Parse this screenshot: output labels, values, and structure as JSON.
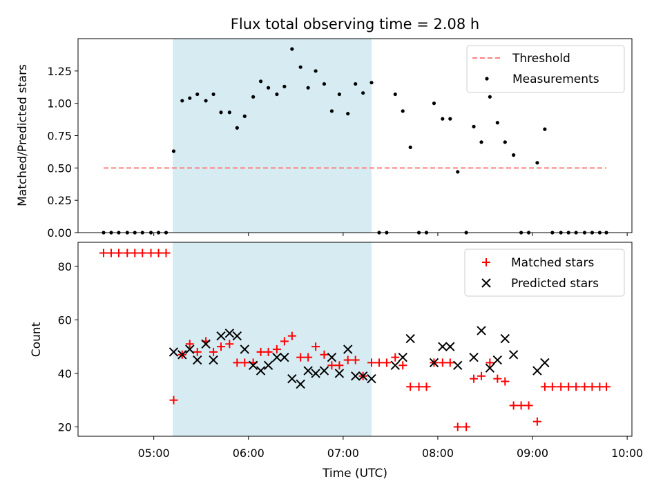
{
  "figure": {
    "title": "Flux total observing time = 2.08 h"
  },
  "chart_data": [
    {
      "type": "scatter",
      "panel": "top",
      "ylabel": "Matched/Predicted stars",
      "ylim": [
        0,
        1.5
      ],
      "yticks": [
        "0.00",
        "0.25",
        "0.50",
        "0.75",
        "1.00",
        "1.25"
      ],
      "xlim": [
        4.2,
        10.05
      ],
      "shaded_span": [
        5.2,
        7.3
      ],
      "grid": false,
      "legend_position": "top-right",
      "threshold": {
        "name": "Threshold",
        "value": 0.5,
        "x_range": [
          4.47,
          9.78
        ],
        "color": "#ff7f7f"
      },
      "series": [
        {
          "name": "Measurements",
          "color": "#000000",
          "x": [
            4.47,
            4.55,
            4.63,
            4.72,
            4.8,
            4.88,
            4.97,
            5.05,
            5.13,
            5.21,
            5.3,
            5.38,
            5.46,
            5.55,
            5.63,
            5.71,
            5.8,
            5.88,
            5.96,
            6.05,
            6.13,
            6.21,
            6.3,
            6.38,
            6.46,
            6.55,
            6.63,
            6.71,
            6.8,
            6.88,
            6.96,
            7.05,
            7.13,
            7.21,
            7.3,
            7.38,
            7.46,
            7.55,
            7.63,
            7.71,
            7.8,
            7.88,
            7.96,
            8.05,
            8.13,
            8.21,
            8.3,
            8.38,
            8.46,
            8.55,
            8.63,
            8.71,
            8.8,
            8.88,
            8.96,
            9.05,
            9.13,
            9.21,
            9.3,
            9.38,
            9.46,
            9.55,
            9.63,
            9.71,
            9.78
          ],
          "y": [
            0,
            0,
            0,
            0,
            0,
            0,
            0,
            0,
            0,
            0.63,
            1.02,
            1.04,
            1.07,
            1.02,
            1.07,
            0.93,
            0.93,
            0.81,
            0.9,
            1.05,
            1.17,
            1.12,
            1.07,
            1.13,
            1.42,
            1.28,
            1.12,
            1.25,
            1.15,
            0.94,
            1.07,
            0.92,
            1.15,
            1.08,
            1.16,
            0,
            0,
            1.07,
            0.94,
            0.66,
            0,
            0,
            1.0,
            0.88,
            0.88,
            0.47,
            0,
            0.82,
            0.7,
            1.05,
            0.85,
            0.7,
            0.6,
            0,
            0,
            0.54,
            0.8,
            0,
            0,
            0,
            0,
            0,
            0,
            0,
            0
          ]
        }
      ]
    },
    {
      "type": "scatter",
      "panel": "bottom",
      "ylabel": "Count",
      "xlabel": "Time (UTC)",
      "ylim": [
        16.5,
        89
      ],
      "yticks": [
        "20",
        "40",
        "60",
        "80"
      ],
      "xlim": [
        4.2,
        10.05
      ],
      "xticks": [
        {
          "value": 5,
          "label": "05:00"
        },
        {
          "value": 6,
          "label": "06:00"
        },
        {
          "value": 7,
          "label": "07:00"
        },
        {
          "value": 8,
          "label": "08:00"
        },
        {
          "value": 9,
          "label": "09:00"
        },
        {
          "value": 10,
          "label": "10:00"
        }
      ],
      "shaded_span": [
        5.2,
        7.3
      ],
      "grid": false,
      "legend_position": "top-right",
      "series": [
        {
          "name": "Matched stars",
          "marker": "+",
          "color": "#ff0000",
          "x": [
            4.47,
            4.55,
            4.63,
            4.72,
            4.8,
            4.88,
            4.97,
            5.05,
            5.13,
            5.21,
            5.3,
            5.38,
            5.46,
            5.55,
            5.63,
            5.71,
            5.8,
            5.88,
            5.96,
            6.05,
            6.13,
            6.21,
            6.3,
            6.38,
            6.46,
            6.55,
            6.63,
            6.71,
            6.8,
            6.88,
            6.96,
            7.05,
            7.13,
            7.21,
            7.3,
            7.38,
            7.46,
            7.55,
            7.63,
            7.71,
            7.8,
            7.88,
            7.96,
            8.05,
            8.13,
            8.21,
            8.3,
            8.38,
            8.46,
            8.55,
            8.63,
            8.71,
            8.8,
            8.88,
            8.96,
            9.05,
            9.13,
            9.21,
            9.3,
            9.38,
            9.46,
            9.55,
            9.63,
            9.71,
            9.78
          ],
          "y": [
            85,
            85,
            85,
            85,
            85,
            85,
            85,
            85,
            85,
            30,
            47,
            51,
            48,
            52,
            48,
            50,
            51,
            44,
            44,
            44,
            48,
            48,
            49,
            52,
            54,
            46,
            46,
            50,
            47,
            43,
            43,
            45,
            45,
            39,
            44,
            44,
            44,
            46,
            43,
            35,
            35,
            35,
            44,
            44,
            44,
            20,
            20,
            38,
            39,
            44,
            38,
            37,
            28,
            28,
            28,
            22,
            35,
            35,
            35,
            35,
            35,
            35,
            35,
            35,
            35
          ]
        },
        {
          "name": "Predicted stars",
          "marker": "x",
          "color": "#000000",
          "x": [
            5.21,
            5.3,
            5.38,
            5.46,
            5.55,
            5.63,
            5.71,
            5.8,
            5.88,
            5.96,
            6.05,
            6.13,
            6.21,
            6.3,
            6.38,
            6.46,
            6.55,
            6.63,
            6.71,
            6.8,
            6.88,
            6.96,
            7.05,
            7.13,
            7.21,
            7.3,
            7.55,
            7.63,
            7.71,
            7.96,
            8.05,
            8.13,
            8.21,
            8.38,
            8.46,
            8.55,
            8.63,
            8.71,
            8.8,
            9.05,
            9.13
          ],
          "y": [
            48,
            47,
            49,
            45,
            51,
            45,
            54,
            55,
            54,
            49,
            43,
            41,
            43,
            46,
            46,
            38,
            36,
            41,
            40,
            41,
            46,
            40,
            49,
            39,
            39,
            38,
            43,
            46,
            53,
            44,
            50,
            50,
            43,
            46,
            56,
            42,
            45,
            53,
            47,
            41,
            44
          ]
        }
      ]
    }
  ]
}
